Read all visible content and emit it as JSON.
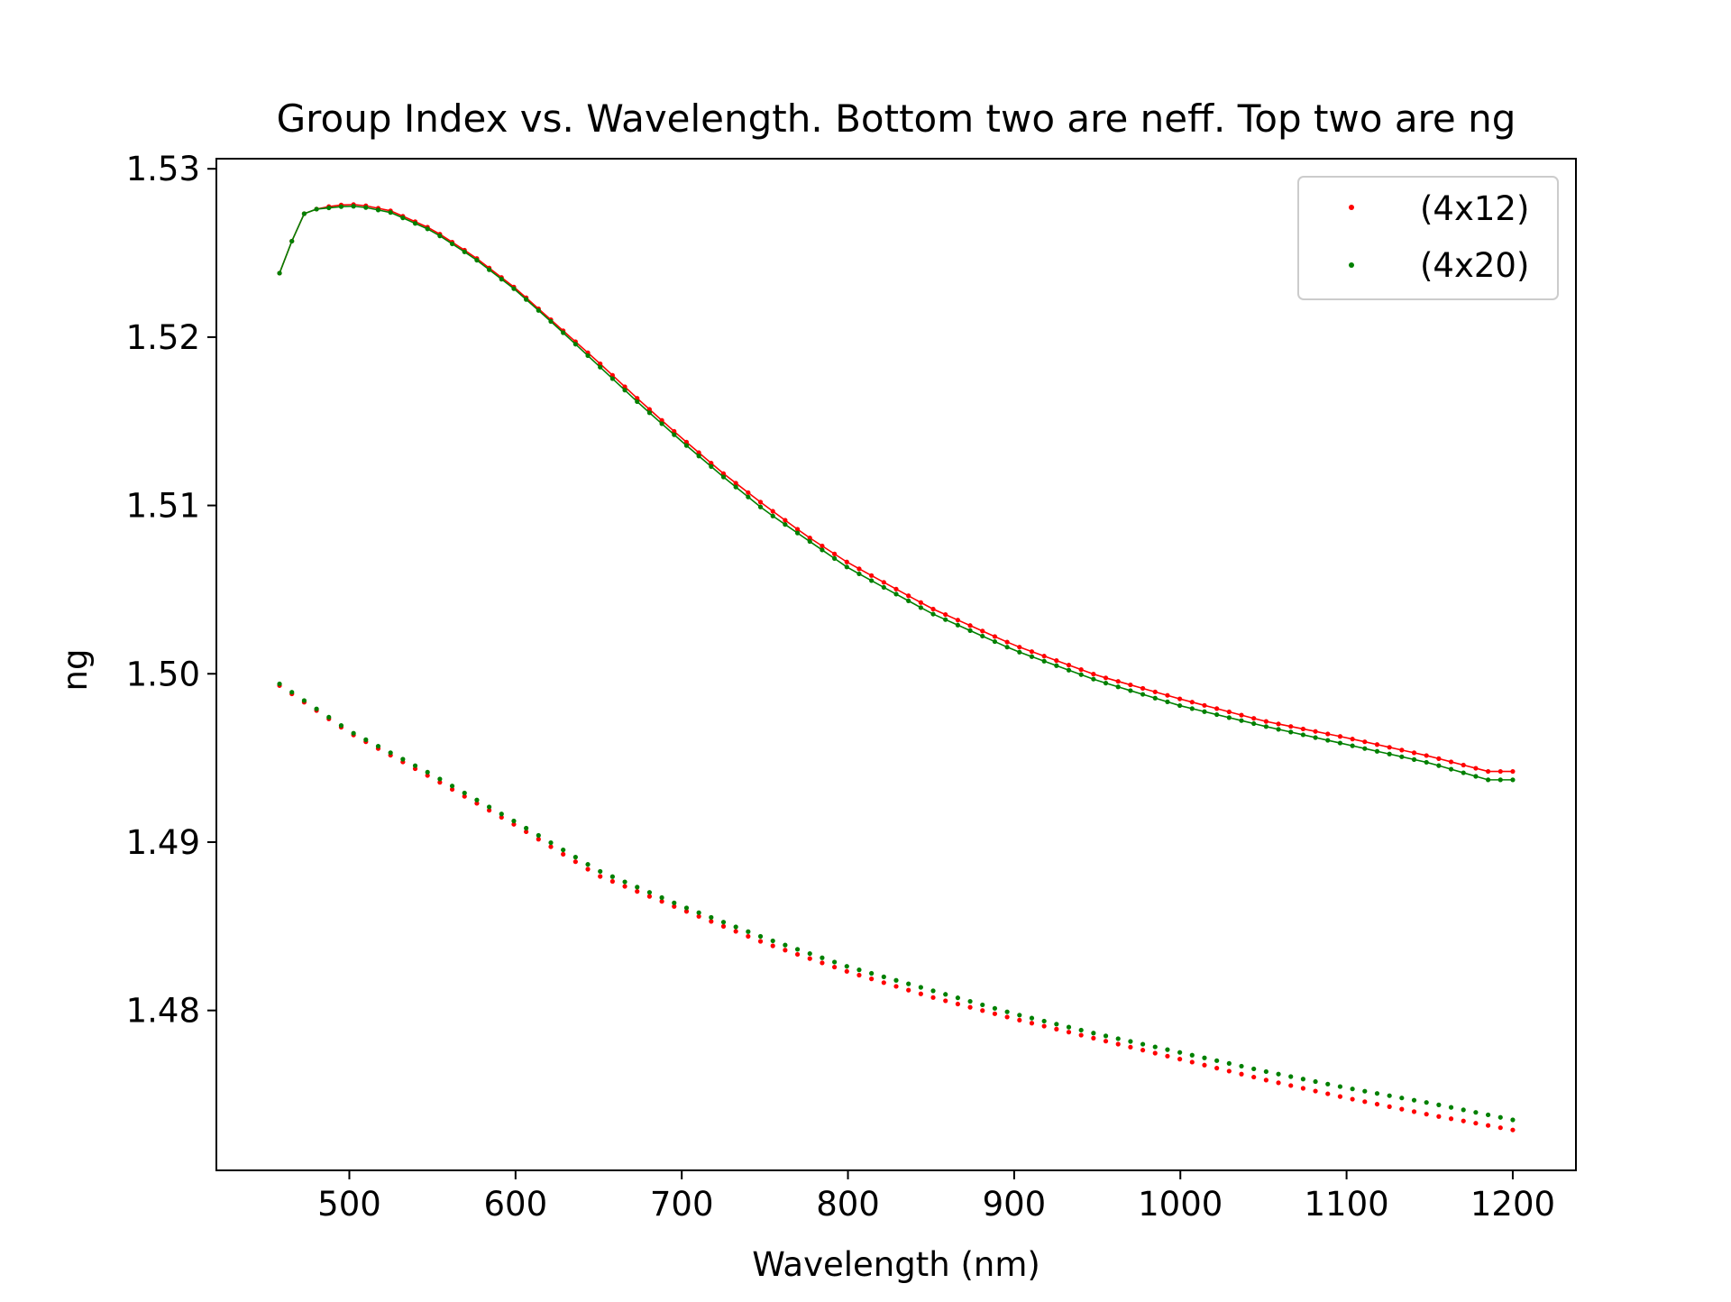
{
  "chart_data": {
    "type": "scatter",
    "title": "Group Index vs. Wavelength. Bottom two are neff. Top two are ng",
    "xlabel": "Wavelength (nm)",
    "ylabel": "ng",
    "xlim": [
      420,
      1238
    ],
    "ylim": [
      1.4705,
      1.5306
    ],
    "xticks": [
      500,
      600,
      700,
      800,
      900,
      1000,
      1100,
      1200
    ],
    "xtick_labels": [
      "500",
      "600",
      "700",
      "800",
      "900",
      "1000",
      "1100",
      "1200"
    ],
    "yticks": [
      1.48,
      1.49,
      1.5,
      1.51,
      1.52,
      1.53
    ],
    "ytick_labels": [
      "1.48",
      "1.49",
      "1.50",
      "1.51",
      "1.52",
      "1.53"
    ],
    "grid": false,
    "legend_position": "top-right",
    "legend": [
      {
        "label": "(4x12)",
        "color": "#ff0000"
      },
      {
        "label": "(4x20)",
        "color": "#008000"
      }
    ],
    "series": [
      {
        "name": "(4x12)",
        "quantity": "ng",
        "color": "#ff0000",
        "line": true,
        "x_start": 458,
        "x_end": 1200,
        "points": 101,
        "anchors": [
          [
            458,
            1.5238
          ],
          [
            465,
            1.5256
          ],
          [
            472,
            1.5273
          ],
          [
            480,
            1.5276
          ],
          [
            490,
            1.5278
          ],
          [
            500,
            1.5279
          ],
          [
            510,
            1.5278
          ],
          [
            525,
            1.5275
          ],
          [
            550,
            1.5264
          ],
          [
            575,
            1.5248
          ],
          [
            600,
            1.5229
          ],
          [
            625,
            1.5207
          ],
          [
            650,
            1.5185
          ],
          [
            675,
            1.5162
          ],
          [
            700,
            1.514
          ],
          [
            725,
            1.5119
          ],
          [
            750,
            1.51
          ],
          [
            775,
            1.5082
          ],
          [
            800,
            1.5066
          ],
          [
            850,
            1.5039
          ],
          [
            900,
            1.5017
          ],
          [
            950,
            1.4999
          ],
          [
            1000,
            1.4985
          ],
          [
            1050,
            1.4972
          ],
          [
            1100,
            1.4962
          ],
          [
            1150,
            1.4951
          ],
          [
            1185,
            1.4942
          ],
          [
            1200,
            1.4942
          ]
        ]
      },
      {
        "name": "(4x20)",
        "quantity": "ng",
        "color": "#008000",
        "line": true,
        "x_start": 458,
        "x_end": 1200,
        "points": 101,
        "anchors": [
          [
            458,
            1.5238
          ],
          [
            465,
            1.5256
          ],
          [
            472,
            1.5273
          ],
          [
            480,
            1.5276
          ],
          [
            490,
            1.5277
          ],
          [
            500,
            1.5278
          ],
          [
            510,
            1.5277
          ],
          [
            525,
            1.5274
          ],
          [
            550,
            1.5263
          ],
          [
            575,
            1.5247
          ],
          [
            600,
            1.5228
          ],
          [
            625,
            1.5206
          ],
          [
            650,
            1.5183
          ],
          [
            675,
            1.516
          ],
          [
            700,
            1.5138
          ],
          [
            725,
            1.5117
          ],
          [
            750,
            1.5097
          ],
          [
            775,
            1.508
          ],
          [
            800,
            1.5063
          ],
          [
            850,
            1.5036
          ],
          [
            900,
            1.5014
          ],
          [
            950,
            1.4996
          ],
          [
            1000,
            1.4981
          ],
          [
            1050,
            1.4969
          ],
          [
            1100,
            1.4958
          ],
          [
            1150,
            1.4947
          ],
          [
            1185,
            1.4937
          ],
          [
            1200,
            1.4937
          ]
        ]
      },
      {
        "name": "(4x12)",
        "quantity": "neff",
        "color": "#ff0000",
        "line": false,
        "x_start": 458,
        "x_end": 1200,
        "points": 101,
        "anchors": [
          [
            458,
            1.4993
          ],
          [
            500,
            1.4965
          ],
          [
            550,
            1.4938
          ],
          [
            600,
            1.491
          ],
          [
            650,
            1.488
          ],
          [
            700,
            1.486
          ],
          [
            750,
            1.484
          ],
          [
            800,
            1.4823
          ],
          [
            850,
            1.4808
          ],
          [
            900,
            1.4795
          ],
          [
            950,
            1.4783
          ],
          [
            1000,
            1.4771
          ],
          [
            1050,
            1.4759
          ],
          [
            1100,
            1.4748
          ],
          [
            1150,
            1.4738
          ],
          [
            1200,
            1.4729
          ]
        ]
      },
      {
        "name": "(4x20)",
        "quantity": "neff",
        "color": "#008000",
        "line": false,
        "x_start": 458,
        "x_end": 1200,
        "points": 101,
        "anchors": [
          [
            458,
            1.4994
          ],
          [
            500,
            1.4966
          ],
          [
            550,
            1.494
          ],
          [
            600,
            1.4912
          ],
          [
            650,
            1.4883
          ],
          [
            700,
            1.4862
          ],
          [
            750,
            1.4843
          ],
          [
            800,
            1.4826
          ],
          [
            850,
            1.4812
          ],
          [
            900,
            1.4798
          ],
          [
            950,
            1.4786
          ],
          [
            1000,
            1.4775
          ],
          [
            1050,
            1.4764
          ],
          [
            1100,
            1.4754
          ],
          [
            1150,
            1.4745
          ],
          [
            1200,
            1.4735
          ]
        ]
      }
    ]
  }
}
